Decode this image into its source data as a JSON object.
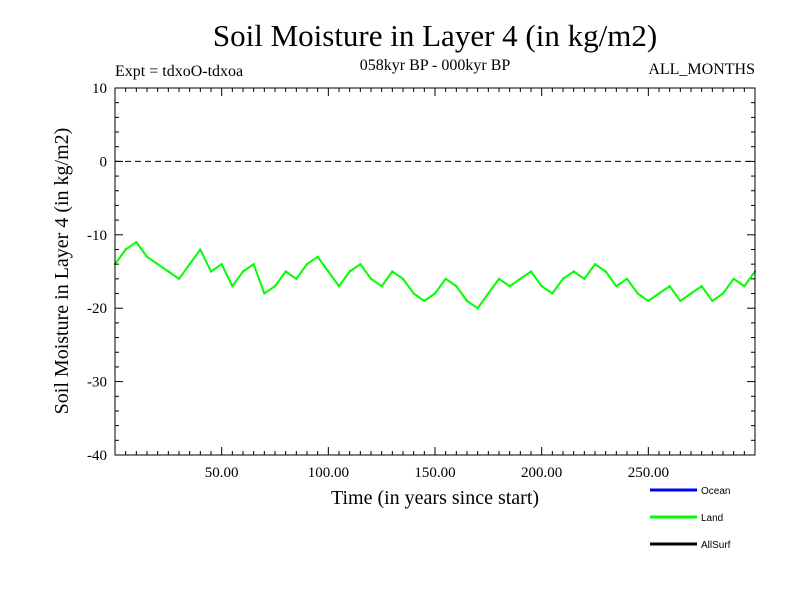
{
  "chart_data": {
    "type": "line",
    "title": "Soil Moisture in Layer 4 (in kg/m2)",
    "subtitle_left": "Expt = tdxoO-tdxoa",
    "subtitle_center": "058kyr BP - 000kyr BP",
    "subtitle_right": "ALL_MONTHS",
    "xlabel": "Time (in years since start)",
    "ylabel": "Soil Moisture in Layer 4 (in kg/m2)",
    "xlim": [
      0,
      300
    ],
    "ylim": [
      -40,
      10
    ],
    "x_ticks": [
      50,
      100,
      150,
      200,
      250
    ],
    "x_tick_labels": [
      "50.00",
      "100.00",
      "150.00",
      "200.00",
      "250.00"
    ],
    "y_ticks": [
      -40,
      -30,
      -20,
      -10,
      0,
      10
    ],
    "y_tick_labels": [
      "-40",
      "-30",
      "-20",
      "-10",
      "0",
      "10"
    ],
    "reference_line": {
      "y": 0,
      "style": "dashed"
    },
    "legend_placement": "bottom-right",
    "series": [
      {
        "name": "Ocean",
        "color": "#0000ff",
        "x": [],
        "y": []
      },
      {
        "name": "Land",
        "color": "#00ff00",
        "x": [
          0,
          5,
          10,
          15,
          20,
          25,
          30,
          35,
          40,
          45,
          50,
          55,
          60,
          65,
          70,
          75,
          80,
          85,
          90,
          95,
          100,
          105,
          110,
          115,
          120,
          125,
          130,
          135,
          140,
          145,
          150,
          155,
          160,
          165,
          170,
          175,
          180,
          185,
          190,
          195,
          200,
          205,
          210,
          215,
          220,
          225,
          230,
          235,
          240,
          245,
          250,
          255,
          260,
          265,
          270,
          275,
          280,
          285,
          290,
          295,
          300
        ],
        "y": [
          -14,
          -12,
          -11,
          -13,
          -14,
          -15,
          -16,
          -14,
          -12,
          -15,
          -14,
          -17,
          -15,
          -14,
          -18,
          -17,
          -15,
          -16,
          -14,
          -13,
          -15,
          -17,
          -15,
          -14,
          -16,
          -17,
          -15,
          -16,
          -18,
          -19,
          -18,
          -16,
          -17,
          -19,
          -20,
          -18,
          -16,
          -17,
          -16,
          -15,
          -17,
          -18,
          -16,
          -15,
          -16,
          -14,
          -15,
          -17,
          -16,
          -18,
          -19,
          -18,
          -17,
          -19,
          -18,
          -17,
          -19,
          -18,
          -16,
          -17,
          -15
        ]
      },
      {
        "name": "AllSurf",
        "color": "#000000",
        "x": [],
        "y": []
      }
    ],
    "legend": [
      {
        "label": "Ocean",
        "color": "#0000ff"
      },
      {
        "label": "Land",
        "color": "#00ff00"
      },
      {
        "label": "AllSurf",
        "color": "#000000"
      }
    ]
  }
}
